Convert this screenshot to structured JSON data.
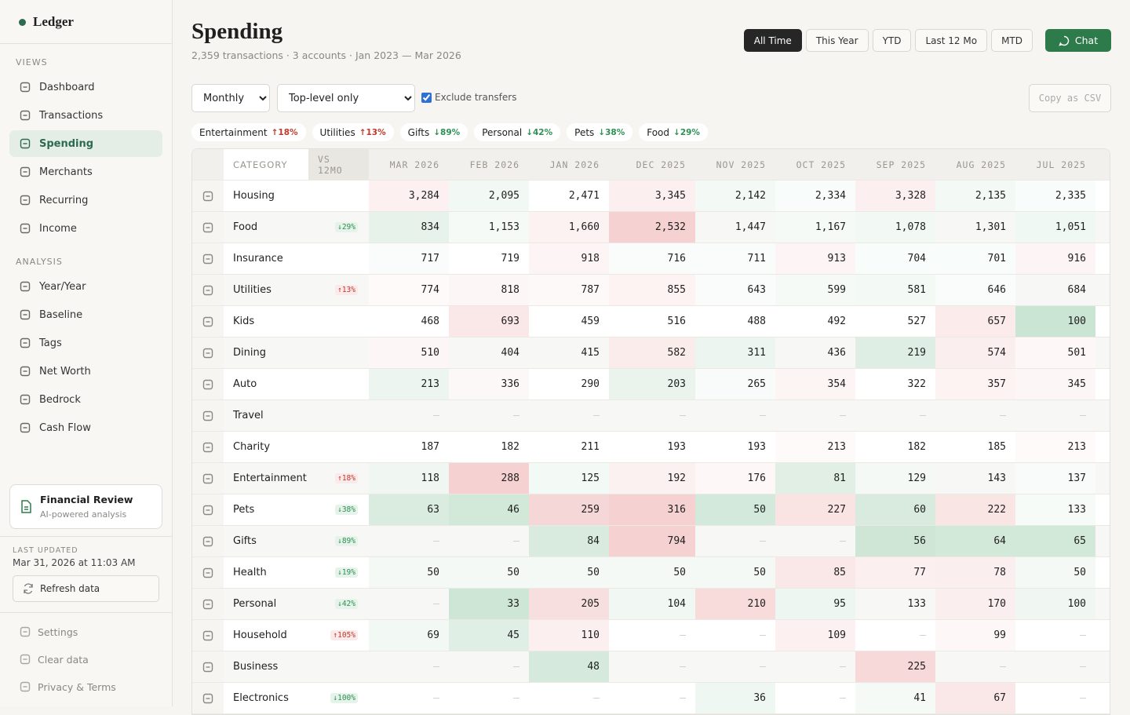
{
  "sidebar": {
    "brand": "Ledger",
    "views_label": "VIEWS",
    "views": [
      "Dashboard",
      "Transactions",
      "Spending",
      "Merchants",
      "Recurring",
      "Income"
    ],
    "analysis_label": "ANALYSIS",
    "analysis": [
      "Year/Year",
      "Baseline",
      "Tags",
      "Net Worth",
      "Bedrock",
      "Cash Flow"
    ],
    "active": "Spending",
    "review": {
      "title": "Financial Review",
      "subtitle": "AI-powered analysis"
    },
    "updated_label": "LAST UPDATED",
    "updated": "Mar 31, 2026 at 11:03 AM",
    "refresh": "Refresh data",
    "footer": [
      "Settings",
      "Clear data",
      "Privacy & Terms"
    ]
  },
  "header": {
    "title": "Spending",
    "subtitle": "2,359 transactions · 3 accounts · Jan 2023 — Mar 2026",
    "ranges": [
      "All Time",
      "This Year",
      "YTD",
      "Last 12 Mo",
      "MTD"
    ],
    "active_range": "All Time",
    "chat": "Chat"
  },
  "controls": {
    "period": "Monthly",
    "level": "Top-level only",
    "exclude_transfers": "Exclude transfers",
    "copy": "Copy as CSV"
  },
  "chips": [
    {
      "name": "Entertainment",
      "change": "↑18%"
    },
    {
      "name": "Utilities",
      "change": "↑13%"
    },
    {
      "name": "Gifts",
      "change": "↓89%"
    },
    {
      "name": "Personal",
      "change": "↓42%"
    },
    {
      "name": "Pets",
      "change": "↓38%"
    },
    {
      "name": "Food",
      "change": "↓29%"
    }
  ],
  "table": {
    "headers": [
      "CATEGORY",
      "VS 12MO",
      "MAR 2026",
      "FEB 2026",
      "JAN 2026",
      "DEC 2025",
      "NOV 2025",
      "OCT 2025",
      "SEP 2025",
      "AUG 2025",
      "JUL 2025"
    ],
    "rows": [
      {
        "name": "Housing",
        "vs": null,
        "cells": [
          "3,284",
          "2,095",
          "2,471",
          "3,345",
          "2,142",
          "2,334",
          "3,328",
          "2,135",
          "2,335"
        ]
      },
      {
        "name": "Food",
        "vs": "↓29%",
        "cells": [
          "834",
          "1,153",
          "1,660",
          "2,532",
          "1,447",
          "1,167",
          "1,078",
          "1,301",
          "1,051"
        ]
      },
      {
        "name": "Insurance",
        "vs": null,
        "cells": [
          "717",
          "719",
          "918",
          "716",
          "711",
          "913",
          "704",
          "701",
          "916"
        ]
      },
      {
        "name": "Utilities",
        "vs": "↑13%",
        "cells": [
          "774",
          "818",
          "787",
          "855",
          "643",
          "599",
          "581",
          "646",
          "684"
        ]
      },
      {
        "name": "Kids",
        "vs": null,
        "cells": [
          "468",
          "693",
          "459",
          "516",
          "488",
          "492",
          "527",
          "657",
          "100"
        ]
      },
      {
        "name": "Dining",
        "vs": null,
        "cells": [
          "510",
          "404",
          "415",
          "582",
          "311",
          "436",
          "219",
          "574",
          "501"
        ]
      },
      {
        "name": "Auto",
        "vs": null,
        "cells": [
          "213",
          "336",
          "290",
          "203",
          "265",
          "354",
          "322",
          "357",
          "345"
        ]
      },
      {
        "name": "Travel",
        "vs": null,
        "cells": [
          "–",
          "–",
          "–",
          "–",
          "–",
          "–",
          "–",
          "–",
          "–"
        ]
      },
      {
        "name": "Charity",
        "vs": null,
        "cells": [
          "187",
          "182",
          "211",
          "193",
          "193",
          "213",
          "182",
          "185",
          "213"
        ]
      },
      {
        "name": "Entertainment",
        "vs": "↑18%",
        "cells": [
          "118",
          "288",
          "125",
          "192",
          "176",
          "81",
          "129",
          "143",
          "137"
        ]
      },
      {
        "name": "Pets",
        "vs": "↓38%",
        "cells": [
          "63",
          "46",
          "259",
          "316",
          "50",
          "227",
          "60",
          "222",
          "133"
        ]
      },
      {
        "name": "Gifts",
        "vs": "↓89%",
        "cells": [
          "–",
          "–",
          "84",
          "794",
          "–",
          "–",
          "56",
          "64",
          "65"
        ]
      },
      {
        "name": "Health",
        "vs": "↓19%",
        "cells": [
          "50",
          "50",
          "50",
          "50",
          "50",
          "85",
          "77",
          "78",
          "50"
        ]
      },
      {
        "name": "Personal",
        "vs": "↓42%",
        "cells": [
          "–",
          "33",
          "205",
          "104",
          "210",
          "95",
          "133",
          "170",
          "100"
        ]
      },
      {
        "name": "Household",
        "vs": "↑105%",
        "cells": [
          "69",
          "45",
          "110",
          "–",
          "–",
          "109",
          "–",
          "99",
          "–"
        ]
      },
      {
        "name": "Business",
        "vs": null,
        "cells": [
          "–",
          "–",
          "48",
          "–",
          "–",
          "–",
          "225",
          "–",
          "–"
        ]
      },
      {
        "name": "Electronics",
        "vs": "↓100%",
        "cells": [
          "–",
          "–",
          "–",
          "–",
          "36",
          "–",
          "41",
          "67",
          "–"
        ]
      }
    ]
  }
}
